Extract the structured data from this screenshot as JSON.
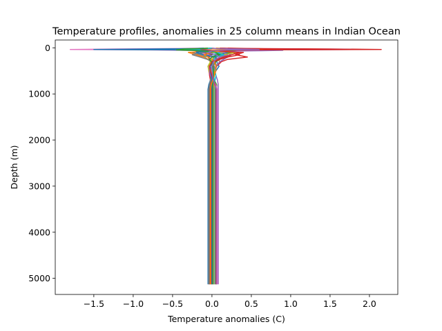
{
  "chart_data": {
    "type": "line",
    "title": "Temperature profiles, anomalies in 25 column means in Indian Ocean",
    "xlabel": "Temperature anomalies (C)",
    "ylabel": "Depth (m)",
    "xlim": [
      -1.99,
      2.36
    ],
    "ylim": [
      5350,
      -170
    ],
    "y_inverted": true,
    "x_ticks": [
      -1.5,
      -1.0,
      -0.5,
      0.0,
      0.5,
      1.0,
      1.5,
      2.0
    ],
    "x_tick_labels": [
      "−1.5",
      "−1.0",
      "−0.5",
      "0.0",
      "0.5",
      "1.0",
      "1.5",
      "2.0"
    ],
    "y_ticks": [
      0,
      1000,
      2000,
      3000,
      4000,
      5000
    ],
    "y_tick_labels": [
      "0",
      "1000",
      "2000",
      "3000",
      "4000",
      "5000"
    ],
    "grid": false,
    "legend": "none",
    "depth_levels": [
      5,
      15,
      25,
      35,
      45,
      55,
      70,
      100,
      150,
      200,
      250,
      300,
      400,
      500,
      600,
      700,
      800,
      900,
      1000,
      1500,
      2000,
      3000,
      4000,
      5000,
      5130
    ],
    "series": [
      {
        "color": "#1f77b4",
        "values": [
          0.05,
          0.08,
          -0.6,
          -1.3,
          -0.4,
          -0.1,
          0.05,
          -0.15,
          0.1,
          -0.05,
          0.0,
          0.06,
          0.09,
          0.05,
          0.02,
          -0.02,
          -0.04,
          -0.05,
          -0.05,
          -0.05,
          -0.05,
          -0.05,
          -0.05,
          -0.05,
          -0.05
        ]
      },
      {
        "color": "#ff7f0e",
        "values": [
          0.1,
          0.2,
          -0.9,
          -0.5,
          -0.2,
          0.1,
          0.2,
          0.0,
          -0.1,
          0.05,
          0.08,
          0.1,
          0.05,
          0.02,
          0.0,
          0.0,
          0.01,
          0.01,
          0.01,
          0.01,
          0.01,
          0.01,
          0.01,
          0.01,
          0.01
        ]
      },
      {
        "color": "#2ca02c",
        "values": [
          0.0,
          -0.1,
          -0.45,
          -0.3,
          -0.5,
          -0.35,
          0.1,
          0.3,
          -0.05,
          0.0,
          0.08,
          0.0,
          -0.05,
          -0.03,
          -0.01,
          0.02,
          0.04,
          0.05,
          0.05,
          0.05,
          0.05,
          0.05,
          0.05,
          0.05,
          0.05
        ]
      },
      {
        "color": "#d62728",
        "values": [
          0.2,
          0.5,
          1.5,
          2.15,
          0.4,
          0.05,
          -0.1,
          0.4,
          0.3,
          0.45,
          0.2,
          0.12,
          0.06,
          0.02,
          -0.01,
          -0.02,
          -0.02,
          -0.03,
          -0.03,
          -0.03,
          -0.03,
          -0.03,
          -0.03,
          -0.03,
          -0.03
        ]
      },
      {
        "color": "#9467bd",
        "values": [
          0.1,
          0.3,
          0.9,
          1.8,
          0.6,
          0.9,
          0.3,
          0.1,
          0.25,
          0.2,
          0.15,
          0.1,
          0.05,
          0.03,
          0.05,
          0.07,
          0.08,
          0.08,
          0.08,
          0.08,
          0.08,
          0.08,
          0.08,
          0.08,
          0.08
        ]
      },
      {
        "color": "#8c564b",
        "values": [
          -0.05,
          -0.1,
          -0.3,
          -0.5,
          -0.25,
          -0.1,
          0.0,
          -0.1,
          -0.2,
          -0.1,
          -0.05,
          0.0,
          0.03,
          0.03,
          0.02,
          0.0,
          -0.02,
          -0.03,
          -0.03,
          -0.03,
          -0.03,
          -0.03,
          -0.03,
          -0.03,
          -0.03
        ]
      },
      {
        "color": "#e377c2",
        "values": [
          -0.1,
          -0.4,
          -1.2,
          -1.8,
          -0.8,
          -0.3,
          -0.1,
          -0.2,
          -0.1,
          0.0,
          0.02,
          -0.02,
          -0.04,
          -0.04,
          -0.03,
          -0.01,
          0.02,
          0.04,
          0.04,
          0.04,
          0.04,
          0.04,
          0.04,
          0.04,
          0.04
        ]
      },
      {
        "color": "#7f7f7f",
        "values": [
          0.05,
          0.1,
          0.3,
          0.4,
          0.1,
          -0.05,
          -0.1,
          -0.25,
          -0.15,
          -0.05,
          0.0,
          0.04,
          0.06,
          0.04,
          0.02,
          0.0,
          -0.01,
          -0.01,
          -0.01,
          -0.01,
          -0.01,
          -0.01,
          -0.01,
          -0.01,
          -0.01
        ]
      },
      {
        "color": "#bcbd22",
        "values": [
          0.0,
          0.05,
          0.2,
          0.5,
          0.25,
          0.15,
          -0.1,
          0.1,
          0.2,
          0.1,
          0.05,
          -0.02,
          -0.05,
          -0.04,
          -0.02,
          0.01,
          0.03,
          0.03,
          0.03,
          0.03,
          0.03,
          0.03,
          0.03,
          0.03,
          0.03
        ]
      },
      {
        "color": "#17becf",
        "values": [
          0.0,
          -0.1,
          -0.2,
          -0.6,
          -0.3,
          -0.2,
          -0.05,
          0.1,
          0.0,
          -0.1,
          -0.05,
          0.0,
          0.02,
          0.04,
          0.05,
          0.04,
          0.0,
          -0.02,
          -0.02,
          -0.02,
          -0.02,
          -0.02,
          -0.02,
          -0.02,
          -0.02
        ]
      },
      {
        "color": "#1f77b4",
        "values": [
          0.1,
          0.2,
          0.5,
          1.0,
          0.3,
          0.1,
          0.05,
          0.2,
          0.1,
          0.2,
          0.1,
          0.05,
          0.0,
          -0.02,
          -0.02,
          -0.01,
          0.0,
          0.0,
          0.0,
          0.0,
          0.0,
          0.0,
          0.0,
          0.0,
          0.0
        ]
      },
      {
        "color": "#ff7f0e",
        "values": [
          -0.05,
          -0.2,
          -0.5,
          -0.9,
          -0.3,
          -0.15,
          -0.05,
          -0.3,
          -0.2,
          -0.1,
          -0.05,
          -0.02,
          0.02,
          0.03,
          0.03,
          0.02,
          0.02,
          0.02,
          0.02,
          0.02,
          0.02,
          0.02,
          0.02,
          0.02,
          0.02
        ]
      },
      {
        "color": "#2ca02c",
        "values": [
          0.05,
          0.1,
          0.35,
          0.7,
          0.2,
          0.3,
          0.1,
          -0.05,
          0.05,
          0.15,
          0.1,
          0.05,
          0.01,
          0.0,
          0.01,
          0.03,
          0.06,
          0.06,
          0.06,
          0.06,
          0.06,
          0.06,
          0.06,
          0.06,
          0.06
        ]
      },
      {
        "color": "#d62728",
        "values": [
          0.0,
          0.0,
          -0.1,
          -0.2,
          -0.1,
          0.0,
          0.1,
          0.25,
          0.35,
          0.2,
          0.1,
          0.03,
          -0.02,
          -0.03,
          -0.03,
          -0.02,
          -0.01,
          -0.01,
          -0.01,
          -0.01,
          -0.01,
          -0.01,
          -0.01,
          -0.01,
          -0.01
        ]
      },
      {
        "color": "#9467bd",
        "values": [
          0.1,
          0.15,
          0.4,
          0.8,
          0.2,
          0.05,
          0.0,
          0.15,
          0.2,
          0.1,
          0.05,
          0.0,
          -0.03,
          -0.03,
          -0.02,
          0.0,
          0.01,
          0.02,
          0.02,
          0.02,
          0.02,
          0.02,
          0.02,
          0.02,
          0.02
        ]
      },
      {
        "color": "#8c564b",
        "values": [
          -0.02,
          -0.05,
          -0.3,
          -0.7,
          -0.2,
          -0.1,
          -0.2,
          -0.1,
          0.0,
          -0.05,
          -0.03,
          0.0,
          0.02,
          0.02,
          0.01,
          -0.01,
          -0.03,
          -0.04,
          -0.04,
          -0.04,
          -0.04,
          -0.04,
          -0.04,
          -0.04,
          -0.04
        ]
      },
      {
        "color": "#e377c2",
        "values": [
          0.05,
          0.1,
          0.25,
          0.45,
          0.15,
          0.05,
          -0.05,
          -0.15,
          -0.05,
          0.05,
          0.04,
          0.02,
          0.0,
          -0.01,
          0.0,
          0.02,
          0.05,
          0.07,
          0.07,
          0.07,
          0.07,
          0.07,
          0.07,
          0.07,
          0.07
        ]
      },
      {
        "color": "#7f7f7f",
        "values": [
          -0.05,
          -0.15,
          -0.6,
          -1.1,
          -0.35,
          -0.15,
          0.0,
          -0.1,
          -0.25,
          -0.15,
          -0.06,
          0.0,
          0.03,
          0.02,
          0.0,
          -0.02,
          -0.03,
          -0.04,
          -0.04,
          -0.04,
          -0.04,
          -0.04,
          -0.04,
          -0.04,
          -0.04
        ]
      },
      {
        "color": "#bcbd22",
        "values": [
          0.05,
          0.2,
          0.6,
          1.2,
          0.35,
          0.1,
          0.05,
          0.3,
          0.15,
          0.05,
          0.0,
          -0.02,
          -0.03,
          -0.01,
          0.01,
          0.02,
          0.03,
          0.03,
          0.03,
          0.03,
          0.03,
          0.03,
          0.03,
          0.03,
          0.03
        ]
      },
      {
        "color": "#17becf",
        "values": [
          0.0,
          -0.05,
          -0.2,
          -0.35,
          -0.15,
          -0.25,
          -0.1,
          0.05,
          0.15,
          0.05,
          0.02,
          0.0,
          0.0,
          0.01,
          0.02,
          0.03,
          0.04,
          0.04,
          0.04,
          0.04,
          0.04,
          0.04,
          0.04,
          0.04,
          0.04
        ]
      },
      {
        "color": "#1f77b4",
        "values": [
          -0.1,
          -0.2,
          -0.7,
          -1.5,
          -0.5,
          -0.2,
          -0.05,
          -0.2,
          -0.1,
          0.05,
          0.05,
          0.01,
          -0.02,
          -0.02,
          -0.01,
          0.0,
          0.0,
          0.0,
          0.0,
          0.0,
          0.0,
          0.0,
          0.0,
          0.0,
          0.0
        ]
      },
      {
        "color": "#ff7f0e",
        "values": [
          0.05,
          0.1,
          0.2,
          0.3,
          0.1,
          0.0,
          0.1,
          0.0,
          -0.1,
          -0.05,
          0.0,
          0.03,
          0.05,
          0.05,
          0.03,
          0.01,
          -0.01,
          -0.02,
          -0.02,
          -0.02,
          -0.02,
          -0.02,
          -0.02,
          -0.02,
          -0.02
        ]
      },
      {
        "color": "#2ca02c",
        "values": [
          -0.05,
          -0.1,
          -0.35,
          -0.4,
          -0.45,
          -0.25,
          -0.1,
          0.05,
          0.1,
          0.0,
          -0.03,
          -0.01,
          0.01,
          0.02,
          0.02,
          0.02,
          0.01,
          0.01,
          0.01,
          0.01,
          0.01,
          0.01,
          0.01,
          0.01,
          0.01
        ]
      },
      {
        "color": "#d62728",
        "values": [
          0.1,
          0.3,
          1.0,
          1.9,
          0.5,
          0.2,
          0.1,
          0.35,
          0.25,
          0.15,
          0.06,
          0.0,
          -0.03,
          -0.02,
          0.0,
          0.02,
          0.04,
          0.05,
          0.05,
          0.05,
          0.05,
          0.05,
          0.05,
          0.05,
          0.05
        ]
      },
      {
        "color": "#9467bd",
        "values": [
          0.0,
          0.05,
          0.3,
          0.6,
          0.2,
          0.1,
          0.0,
          -0.05,
          0.05,
          0.1,
          0.05,
          0.02,
          0.0,
          0.0,
          0.01,
          0.02,
          0.03,
          0.06,
          0.06,
          0.06,
          0.06,
          0.06,
          0.06,
          0.06,
          0.06
        ]
      }
    ]
  }
}
